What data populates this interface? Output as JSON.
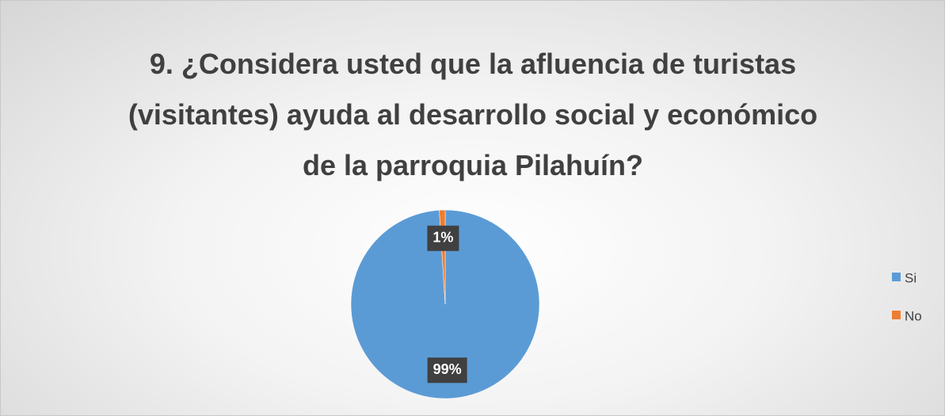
{
  "chart_data": {
    "type": "pie",
    "title": "9. ¿Considera usted que la afluencia de turistas (visitantes) ayuda al desarrollo social y económico de la parroquia Pilahuín?",
    "categories": [
      "Si",
      "No"
    ],
    "values": [
      99,
      1
    ],
    "value_labels": [
      "99%",
      "1%"
    ],
    "colors": [
      "#5b9bd5",
      "#ed7d31"
    ],
    "legend": "right"
  }
}
